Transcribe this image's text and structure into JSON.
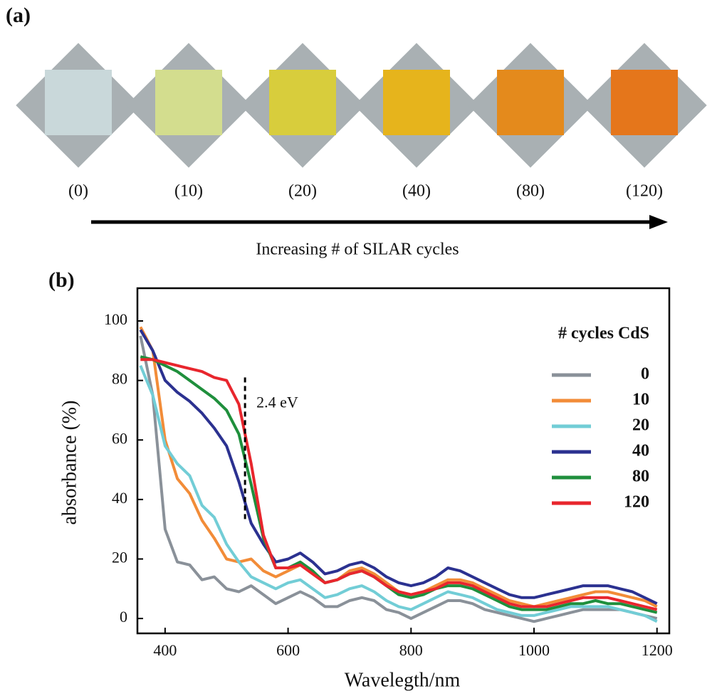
{
  "panels": {
    "a": "(a)",
    "b": "(b)"
  },
  "photos": {
    "labels": [
      "(0)",
      "(10)",
      "(20)",
      "(40)",
      "(80)",
      "(120)"
    ],
    "caption": "Increasing # of SILAR cycles"
  },
  "chart_data": {
    "type": "line",
    "x_label": "Wavelegth/nm",
    "y_label": "absorbance (%)",
    "x": [
      360,
      380,
      400,
      420,
      440,
      460,
      480,
      500,
      520,
      540,
      560,
      580,
      600,
      620,
      640,
      660,
      680,
      700,
      720,
      740,
      760,
      780,
      800,
      820,
      840,
      860,
      880,
      900,
      920,
      940,
      960,
      980,
      1000,
      1020,
      1040,
      1060,
      1080,
      1100,
      1120,
      1140,
      1160,
      1180,
      1200
    ],
    "xlim": [
      355,
      1220
    ],
    "xticks": [
      400,
      600,
      800,
      1000,
      1200
    ],
    "ylim": [
      -5,
      111
    ],
    "yticks": [
      0,
      20,
      40,
      60,
      80,
      100
    ],
    "legend_title": "# cycles CdS",
    "legend": "upper right",
    "series": [
      {
        "name": "0",
        "color": "#8a9199",
        "values": [
          95,
          75,
          30,
          19,
          18,
          13,
          14,
          10,
          9,
          11,
          8,
          5,
          7,
          9,
          7,
          4,
          4,
          6,
          7,
          6,
          3,
          2,
          0,
          2,
          4,
          6,
          6,
          5,
          3,
          2,
          1,
          0,
          -1,
          0,
          1,
          2,
          3,
          3,
          3,
          3,
          2,
          1,
          0
        ]
      },
      {
        "name": "10",
        "color": "#f28c38",
        "values": [
          98,
          90,
          60,
          47,
          42,
          33,
          27,
          20,
          19,
          20,
          16,
          14,
          16,
          18,
          15,
          12,
          13,
          16,
          17,
          15,
          12,
          9,
          8,
          9,
          11,
          13,
          13,
          12,
          10,
          8,
          6,
          5,
          4,
          5,
          6,
          7,
          8,
          9,
          9,
          8,
          7,
          6,
          4
        ]
      },
      {
        "name": "20",
        "color": "#72cdd6",
        "values": [
          85,
          75,
          58,
          52,
          48,
          38,
          34,
          25,
          19,
          14,
          12,
          10,
          12,
          13,
          10,
          7,
          8,
          10,
          11,
          9,
          6,
          4,
          3,
          5,
          7,
          9,
          8,
          7,
          5,
          3,
          2,
          1,
          1,
          2,
          3,
          4,
          4,
          4,
          4,
          3,
          2,
          1,
          -1
        ]
      },
      {
        "name": "40",
        "color": "#2b3190",
        "values": [
          97,
          90,
          80,
          76,
          73,
          69,
          64,
          58,
          46,
          32,
          25,
          19,
          20,
          22,
          19,
          15,
          16,
          18,
          19,
          17,
          14,
          12,
          11,
          12,
          14,
          17,
          16,
          14,
          12,
          10,
          8,
          7,
          7,
          8,
          9,
          10,
          11,
          11,
          11,
          10,
          9,
          7,
          5
        ]
      },
      {
        "name": "80",
        "color": "#1f8f3c",
        "values": [
          88,
          87,
          85,
          83,
          80,
          77,
          74,
          70,
          62,
          45,
          27,
          17,
          17,
          19,
          16,
          12,
          13,
          15,
          16,
          14,
          11,
          8,
          7,
          8,
          10,
          11,
          11,
          10,
          8,
          6,
          4,
          3,
          3,
          3,
          4,
          5,
          5,
          6,
          5,
          5,
          4,
          3,
          2
        ]
      },
      {
        "name": "120",
        "color": "#e8262d",
        "values": [
          87,
          87,
          86,
          85,
          84,
          83,
          81,
          80,
          72,
          52,
          28,
          17,
          17,
          18,
          15,
          12,
          13,
          15,
          16,
          14,
          11,
          9,
          8,
          9,
          10,
          12,
          12,
          11,
          9,
          7,
          5,
          4,
          4,
          4,
          5,
          6,
          7,
          7,
          7,
          6,
          5,
          4,
          3
        ]
      }
    ],
    "annotations": [
      {
        "text": "2.4 eV",
        "x": 530,
        "y": [
          81,
          33
        ]
      }
    ]
  }
}
